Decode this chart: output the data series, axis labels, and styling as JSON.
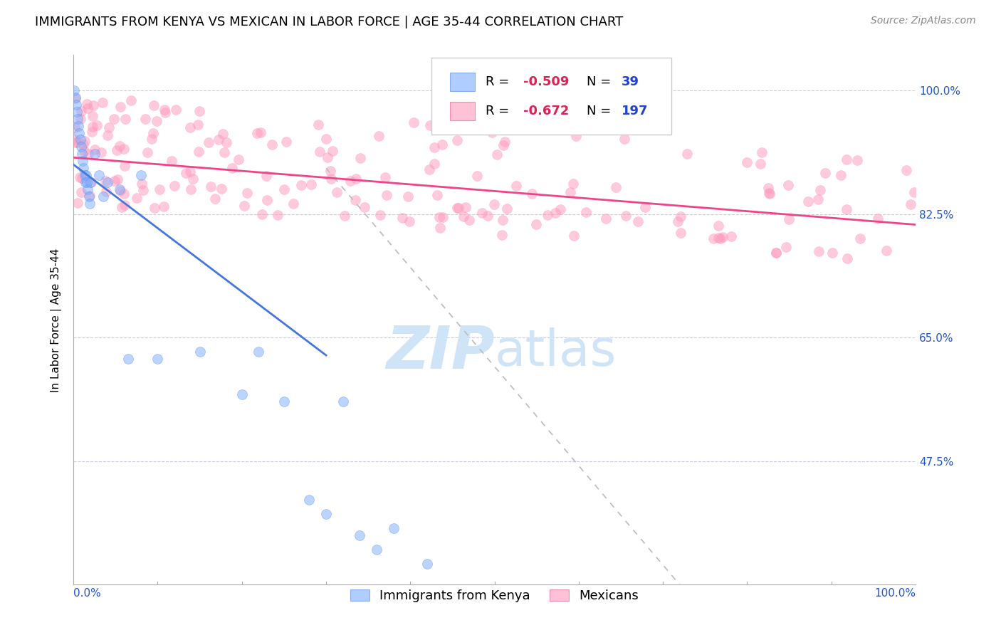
{
  "title": "IMMIGRANTS FROM KENYA VS MEXICAN IN LABOR FORCE | AGE 35-44 CORRELATION CHART",
  "source": "Source: ZipAtlas.com",
  "ylabel": "In Labor Force | Age 35-44",
  "xlim": [
    0.0,
    1.0
  ],
  "ylim": [
    0.3,
    1.05
  ],
  "yticks": [
    0.475,
    0.65,
    0.825,
    1.0
  ],
  "ytick_labels": [
    "47.5%",
    "65.0%",
    "82.5%",
    "100.0%"
  ],
  "xtick_left": "0.0%",
  "xtick_right": "100.0%",
  "kenya_R": -0.509,
  "kenya_N": 39,
  "mexico_R": -0.672,
  "mexico_N": 197,
  "kenya_color": "#7aadff",
  "kenya_edge": "#5588ee",
  "mexico_color": "#ff99bb",
  "mexico_edge": "#ee5588",
  "line_kenya_color": "#4477dd",
  "line_mexico_color": "#ee4488",
  "dashed_line_color": "#bbbbbb",
  "grid_color": "#ccccdd",
  "title_fontsize": 13,
  "source_fontsize": 10,
  "axis_label_fontsize": 11,
  "tick_label_fontsize": 11,
  "watermark_color": "#d0e4f7",
  "watermark_fontsize": 60,
  "legend_fontsize": 13
}
